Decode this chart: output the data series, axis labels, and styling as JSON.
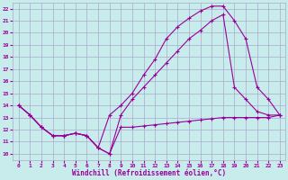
{
  "xlabel": "Windchill (Refroidissement éolien,°C)",
  "bg_color": "#c8ecec",
  "grid_color": "#aaaacc",
  "line_color": "#990099",
  "xlim": [
    -0.5,
    23.5
  ],
  "ylim": [
    9.5,
    22.5
  ],
  "xticks": [
    0,
    1,
    2,
    3,
    4,
    5,
    6,
    7,
    8,
    9,
    10,
    11,
    12,
    13,
    14,
    15,
    16,
    17,
    18,
    19,
    20,
    21,
    22,
    23
  ],
  "yticks": [
    10,
    11,
    12,
    13,
    14,
    15,
    16,
    17,
    18,
    19,
    20,
    21,
    22
  ],
  "curve1_x": [
    0,
    1,
    2,
    3,
    4,
    5,
    6,
    7,
    8,
    9,
    10,
    11,
    12,
    13,
    14,
    15,
    16,
    17,
    18,
    19,
    20,
    21,
    22,
    23
  ],
  "curve1_y": [
    14.0,
    13.2,
    12.2,
    11.5,
    11.5,
    11.7,
    11.5,
    10.5,
    10.0,
    12.2,
    12.2,
    12.3,
    12.4,
    12.5,
    12.6,
    12.7,
    12.8,
    12.9,
    13.0,
    13.0,
    13.0,
    13.0,
    13.0,
    13.2
  ],
  "curve2_x": [
    0,
    1,
    2,
    3,
    4,
    5,
    6,
    7,
    8,
    9,
    10,
    11,
    12,
    13,
    14,
    15,
    16,
    17,
    18,
    19,
    20,
    21,
    22,
    23
  ],
  "curve2_y": [
    14.0,
    13.2,
    12.2,
    11.5,
    11.5,
    11.7,
    11.5,
    10.5,
    10.0,
    13.2,
    14.5,
    15.5,
    16.5,
    17.5,
    18.5,
    19.5,
    20.2,
    21.0,
    21.5,
    15.5,
    14.5,
    13.5,
    13.2,
    13.2
  ],
  "curve3_x": [
    0,
    1,
    2,
    3,
    4,
    5,
    6,
    7,
    8,
    9,
    10,
    11,
    12,
    13,
    14,
    15,
    16,
    17,
    18,
    19,
    20,
    21,
    22,
    23
  ],
  "curve3_y": [
    14.0,
    13.2,
    12.2,
    11.5,
    11.5,
    11.7,
    11.5,
    10.5,
    13.2,
    14.0,
    15.0,
    16.5,
    17.8,
    19.5,
    20.5,
    21.2,
    21.8,
    22.2,
    22.2,
    21.0,
    19.5,
    15.5,
    14.5,
    13.2
  ]
}
